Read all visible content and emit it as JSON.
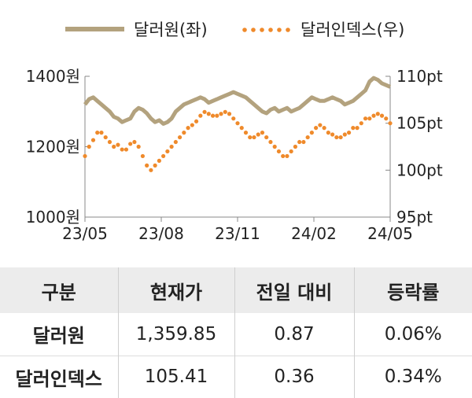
{
  "chart_data": {
    "type": "line",
    "x_ticks": [
      "23/05",
      "23/08",
      "23/11",
      "24/02",
      "24/05"
    ],
    "y_left": {
      "ticks": [
        "1000원",
        "1200원",
        "1400원"
      ],
      "range": [
        1000,
        1400
      ]
    },
    "y_right": {
      "ticks": [
        "95pt",
        "100pt",
        "105pt",
        "110pt"
      ],
      "range": [
        95,
        110
      ]
    },
    "series": [
      {
        "name": "달러원(좌)",
        "axis": "left",
        "style": "solid",
        "color": "#b3a27e",
        "values": [
          1320,
          1335,
          1340,
          1330,
          1320,
          1310,
          1300,
          1285,
          1280,
          1270,
          1275,
          1280,
          1300,
          1310,
          1305,
          1295,
          1280,
          1270,
          1275,
          1265,
          1270,
          1280,
          1300,
          1310,
          1320,
          1325,
          1330,
          1335,
          1340,
          1335,
          1325,
          1330,
          1335,
          1340,
          1345,
          1350,
          1355,
          1350,
          1345,
          1340,
          1330,
          1320,
          1310,
          1300,
          1295,
          1305,
          1310,
          1300,
          1305,
          1310,
          1300,
          1305,
          1310,
          1320,
          1330,
          1340,
          1335,
          1330,
          1330,
          1335,
          1340,
          1335,
          1330,
          1320,
          1325,
          1330,
          1340,
          1350,
          1360,
          1385,
          1395,
          1390,
          1380,
          1375,
          1370
        ]
      },
      {
        "name": "달러인덱스(우)",
        "axis": "right",
        "style": "dotted",
        "color": "#ef8a2b",
        "values": [
          101.5,
          102.5,
          103.2,
          104.0,
          104.0,
          103.5,
          103.0,
          102.5,
          102.7,
          102.2,
          102.2,
          102.8,
          103.0,
          102.5,
          101.5,
          100.5,
          100.0,
          100.5,
          101.0,
          101.5,
          102.0,
          102.5,
          103.0,
          103.5,
          104.0,
          104.5,
          104.8,
          105.2,
          105.8,
          106.2,
          106.0,
          105.8,
          105.8,
          106.0,
          106.2,
          106.0,
          105.5,
          105.0,
          104.5,
          104.0,
          103.5,
          103.5,
          103.8,
          104.0,
          103.5,
          103.0,
          102.5,
          102.0,
          101.5,
          101.5,
          102.0,
          102.5,
          103.0,
          103.0,
          103.5,
          104.0,
          104.5,
          104.8,
          104.5,
          104.0,
          103.8,
          103.5,
          103.5,
          103.8,
          104.0,
          104.5,
          104.5,
          105.0,
          105.5,
          105.5,
          105.8,
          106.0,
          105.8,
          105.5,
          105.0
        ]
      }
    ]
  },
  "table": {
    "headers": [
      "구분",
      "현재가",
      "전일 대비",
      "등락률"
    ],
    "rows": [
      [
        "달러원",
        "1,359.85",
        "0.87",
        "0.06%"
      ],
      [
        "달러인덱스",
        "105.41",
        "0.36",
        "0.34%"
      ]
    ]
  }
}
